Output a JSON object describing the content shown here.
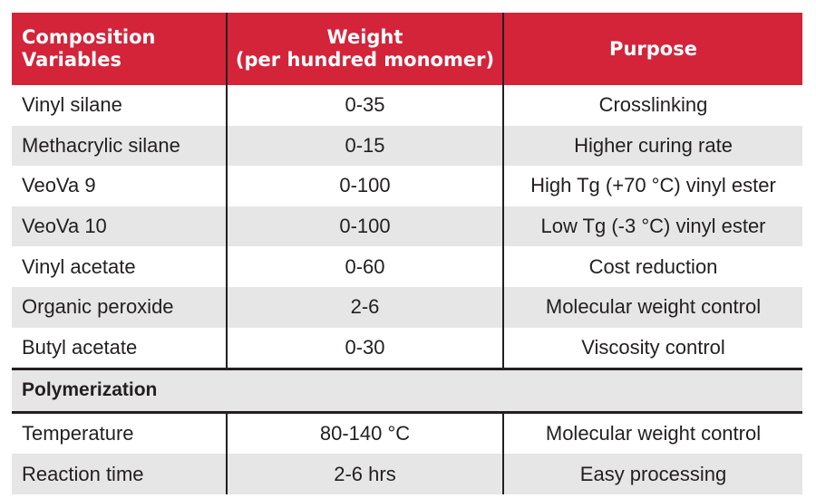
{
  "header": {
    "col1_line1": "Composition",
    "col1_line2": "Variables",
    "col2_line1": "Weight",
    "col2_line2": "(per hundred monomer)",
    "col3": "Purpose"
  },
  "composition_rows": [
    {
      "variable": "Vinyl silane",
      "weight": "0-35",
      "purpose": "Crosslinking"
    },
    {
      "variable": "Methacrylic silane",
      "weight": "0-15",
      "purpose": "Higher curing rate"
    },
    {
      "variable": "VeoVa 9",
      "weight": "0-100",
      "purpose": "High Tg (+70 °C) vinyl ester"
    },
    {
      "variable": "VeoVa 10",
      "weight": "0-100",
      "purpose": "Low Tg (-3 °C) vinyl ester"
    },
    {
      "variable": "Vinyl acetate",
      "weight": "0-60",
      "purpose": "Cost reduction"
    },
    {
      "variable": "Organic peroxide",
      "weight": "2-6",
      "purpose": "Molecular weight control"
    },
    {
      "variable": "Butyl acetate",
      "weight": "0-30",
      "purpose": "Viscosity control"
    }
  ],
  "section_title": "Polymerization",
  "polymerization_rows": [
    {
      "variable": "Temperature",
      "weight": "80-140 °C",
      "purpose": "Molecular weight control"
    },
    {
      "variable": "Reaction time",
      "weight": "2-6 hrs",
      "purpose": "Easy processing"
    }
  ],
  "colors": {
    "header_background": "#d3243a",
    "header_text": "#ffffff",
    "row_alt_background": "#e6e6e7",
    "text": "#231f20"
  }
}
